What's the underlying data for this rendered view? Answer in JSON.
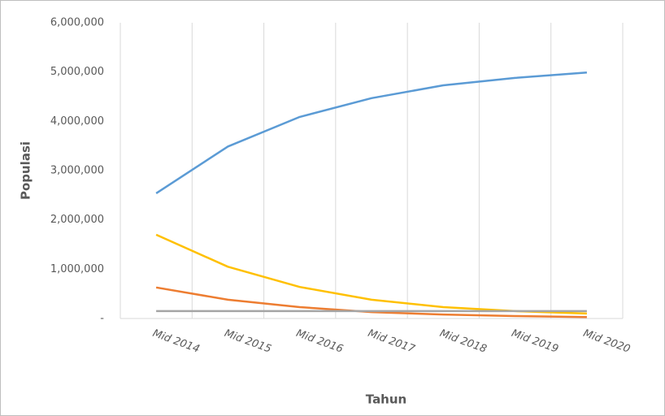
{
  "chart_data": {
    "type": "line",
    "categories": [
      "Mid 2014",
      "Mid 2015",
      "Mid 2016",
      "Mid 2017",
      "Mid 2018",
      "Mid 2019",
      "Mid 2020"
    ],
    "series": [
      {
        "color": "#5b9bd5",
        "values": [
          2540000,
          3490000,
          4090000,
          4470000,
          4730000,
          4880000,
          4990000
        ]
      },
      {
        "color": "#ffc000",
        "values": [
          1700000,
          1050000,
          640000,
          380000,
          230000,
          150000,
          100000
        ]
      },
      {
        "color": "#ed7d31",
        "values": [
          630000,
          380000,
          230000,
          130000,
          80000,
          50000,
          30000
        ]
      },
      {
        "color": "#a5a5a5",
        "values": [
          150000,
          150000,
          150000,
          150000,
          150000,
          150000,
          150000
        ]
      }
    ],
    "xlabel": "Tahun",
    "ylabel": "Populasi",
    "ylim": [
      0,
      6000000
    ],
    "yticks": [
      {
        "value": 0,
        "label": "-"
      },
      {
        "value": 1000000,
        "label": "1,000,000"
      },
      {
        "value": 2000000,
        "label": "2,000,000"
      },
      {
        "value": 3000000,
        "label": "3,000,000"
      },
      {
        "value": 4000000,
        "label": "4,000,000"
      },
      {
        "value": 5000000,
        "label": "5,000,000"
      },
      {
        "value": 6000000,
        "label": "6,000,000"
      }
    ],
    "grid": true
  }
}
